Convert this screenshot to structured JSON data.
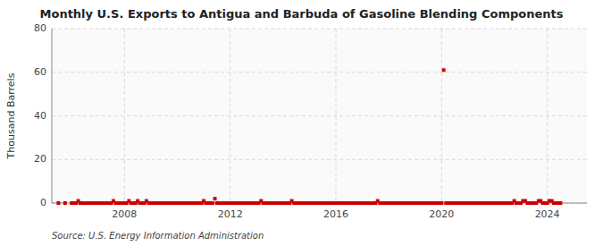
{
  "chart_data": {
    "type": "scatter",
    "title": "Monthly U.S. Exports to Antigua and Barbuda of Gasoline Blending Components",
    "y_label": "Thousand Barrels",
    "annotations": [
      "Source: U.S. Energy Information Administration"
    ],
    "color": "#cc0000",
    "marker": "square",
    "grid": true,
    "xlim": [
      2005.25,
      2025.5
    ],
    "xticks": [
      2008,
      2012,
      2016,
      2020,
      2024
    ],
    "ylim": [
      0,
      80
    ],
    "yticks": [
      0,
      20,
      40,
      60,
      80
    ],
    "x": [
      2005.5,
      2005.75,
      2006.0,
      2006.08,
      2006.17,
      2006.25,
      2006.33,
      2006.42,
      2006.5,
      2006.58,
      2006.67,
      2006.75,
      2006.83,
      2006.92,
      2007.0,
      2007.08,
      2007.17,
      2007.25,
      2007.33,
      2007.42,
      2007.5,
      2007.58,
      2007.67,
      2007.75,
      2007.83,
      2007.92,
      2008.0,
      2008.08,
      2008.17,
      2008.25,
      2008.33,
      2008.42,
      2008.5,
      2008.58,
      2008.67,
      2008.75,
      2008.83,
      2008.92,
      2009.0,
      2009.08,
      2009.17,
      2009.25,
      2009.33,
      2009.42,
      2009.5,
      2009.58,
      2009.67,
      2009.75,
      2009.83,
      2009.92,
      2010.0,
      2010.08,
      2010.17,
      2010.25,
      2010.33,
      2010.42,
      2010.5,
      2010.58,
      2010.67,
      2010.75,
      2010.83,
      2010.92,
      2011.0,
      2011.08,
      2011.17,
      2011.25,
      2011.33,
      2011.42,
      2011.5,
      2011.58,
      2011.67,
      2011.75,
      2011.83,
      2011.92,
      2012.0,
      2012.08,
      2012.17,
      2012.25,
      2012.33,
      2012.42,
      2012.5,
      2012.58,
      2012.67,
      2012.75,
      2012.83,
      2012.92,
      2013.0,
      2013.08,
      2013.17,
      2013.25,
      2013.33,
      2013.42,
      2013.5,
      2013.58,
      2013.67,
      2013.75,
      2013.83,
      2013.92,
      2014.0,
      2014.08,
      2014.17,
      2014.25,
      2014.33,
      2014.42,
      2014.5,
      2014.58,
      2014.67,
      2014.75,
      2014.83,
      2014.92,
      2015.0,
      2015.08,
      2015.17,
      2015.25,
      2015.33,
      2015.42,
      2015.5,
      2015.58,
      2015.67,
      2015.75,
      2015.83,
      2015.92,
      2016.0,
      2016.08,
      2016.17,
      2016.25,
      2016.33,
      2016.42,
      2016.5,
      2016.58,
      2016.67,
      2016.75,
      2016.83,
      2016.92,
      2017.0,
      2017.08,
      2017.17,
      2017.25,
      2017.33,
      2017.42,
      2017.5,
      2017.58,
      2017.67,
      2017.75,
      2017.83,
      2017.92,
      2018.0,
      2018.08,
      2018.17,
      2018.25,
      2018.33,
      2018.42,
      2018.5,
      2018.58,
      2018.67,
      2018.75,
      2018.83,
      2018.92,
      2019.0,
      2019.08,
      2019.17,
      2019.25,
      2019.33,
      2019.42,
      2019.5,
      2019.58,
      2019.67,
      2019.75,
      2019.83,
      2019.92,
      2020.0,
      2020.08,
      2020.17,
      2020.25,
      2020.33,
      2020.42,
      2020.5,
      2020.58,
      2020.67,
      2020.75,
      2020.83,
      2020.92,
      2021.0,
      2021.08,
      2021.17,
      2021.25,
      2021.33,
      2021.42,
      2021.5,
      2021.58,
      2021.67,
      2021.75,
      2021.83,
      2021.92,
      2022.0,
      2022.08,
      2022.17,
      2022.25,
      2022.33,
      2022.42,
      2022.5,
      2022.58,
      2022.67,
      2022.75,
      2022.83,
      2022.92,
      2023.0,
      2023.08,
      2023.17,
      2023.25,
      2023.33,
      2023.42,
      2023.5,
      2023.58,
      2023.67,
      2023.75,
      2023.83,
      2023.92,
      2024.0,
      2024.08,
      2024.17,
      2024.25,
      2024.33,
      2024.42,
      2024.5
    ],
    "values": [
      0,
      0,
      0,
      0,
      0,
      1,
      0,
      0,
      0,
      0,
      0,
      0,
      0,
      0,
      0,
      0,
      0,
      0,
      0,
      0,
      0,
      1,
      0,
      0,
      0,
      0,
      0,
      0,
      1,
      0,
      0,
      0,
      1,
      0,
      0,
      0,
      1,
      0,
      0,
      0,
      0,
      0,
      0,
      0,
      0,
      0,
      0,
      0,
      0,
      0,
      0,
      0,
      0,
      0,
      0,
      0,
      0,
      0,
      0,
      0,
      0,
      0,
      1,
      0,
      0,
      0,
      0,
      2,
      0,
      0,
      0,
      0,
      0,
      0,
      0,
      0,
      0,
      0,
      0,
      0,
      0,
      0,
      0,
      0,
      0,
      0,
      0,
      0,
      1,
      0,
      0,
      0,
      0,
      0,
      0,
      0,
      0,
      0,
      0,
      0,
      0,
      0,
      1,
      0,
      0,
      0,
      0,
      0,
      0,
      0,
      0,
      0,
      0,
      0,
      0,
      0,
      0,
      0,
      0,
      0,
      0,
      0,
      0,
      0,
      0,
      0,
      0,
      0,
      0,
      0,
      0,
      0,
      0,
      0,
      0,
      0,
      0,
      0,
      0,
      0,
      0,
      1,
      0,
      0,
      0,
      0,
      0,
      0,
      0,
      0,
      0,
      0,
      0,
      0,
      0,
      0,
      0,
      0,
      0,
      0,
      0,
      0,
      0,
      0,
      0,
      0,
      0,
      0,
      0,
      0,
      0,
      61,
      0,
      0,
      0,
      0,
      0,
      0,
      0,
      0,
      0,
      0,
      0,
      0,
      0,
      0,
      0,
      0,
      0,
      0,
      0,
      0,
      0,
      0,
      0,
      0,
      0,
      0,
      0,
      0,
      0,
      0,
      0,
      1,
      0,
      0,
      0,
      1,
      1,
      0,
      0,
      0,
      0,
      0,
      1,
      1,
      0,
      0,
      0,
      1,
      1,
      0,
      0,
      0,
      0
    ]
  }
}
